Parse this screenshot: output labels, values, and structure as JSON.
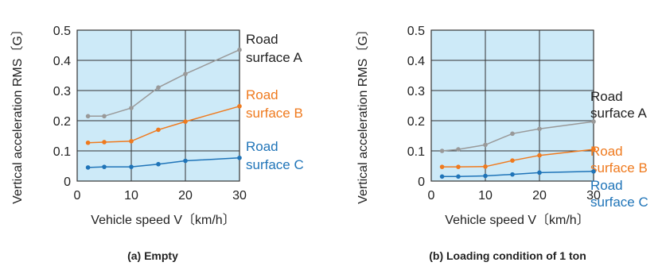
{
  "colors": {
    "plot_background": "#cdeaf8",
    "grid": "#333333",
    "road_a": "#999999",
    "road_b": "#ef7a1e",
    "road_c": "#1f74b8"
  },
  "chart_data": [
    {
      "type": "line",
      "caption": "(a) Empty",
      "xlabel": "Vehicle speed V〔km/h〕",
      "ylabel": "Vertical acceleration RMS〔G〕",
      "xlim": [
        0,
        30
      ],
      "ylim": [
        0,
        0.5
      ],
      "xticks": [
        "0",
        "10",
        "20",
        "30"
      ],
      "yticks": [
        "0",
        "0.1",
        "0.2",
        "0.3",
        "0.4",
        "0.5"
      ],
      "grid": true,
      "series": [
        {
          "name_lines": [
            "Road",
            "surface A"
          ],
          "color": "#999999",
          "x": [
            2,
            5,
            10,
            15,
            20,
            30
          ],
          "y": [
            0.215,
            0.215,
            0.242,
            0.31,
            0.355,
            0.435
          ]
        },
        {
          "name_lines": [
            "Road",
            "surface B"
          ],
          "color": "#ef7a1e",
          "x": [
            2,
            5,
            10,
            15,
            20,
            30
          ],
          "y": [
            0.127,
            0.129,
            0.132,
            0.17,
            0.197,
            0.248
          ]
        },
        {
          "name_lines": [
            "Road",
            "surface C"
          ],
          "color": "#1f74b8",
          "x": [
            2,
            5,
            10,
            15,
            20,
            30
          ],
          "y": [
            0.045,
            0.047,
            0.047,
            0.056,
            0.067,
            0.077
          ]
        }
      ]
    },
    {
      "type": "line",
      "caption": "(b) Loading condition of 1 ton",
      "xlabel": "Vehicle speed V〔km/h〕",
      "ylabel": "Vertical acceleration RMS〔G〕",
      "xlim": [
        0,
        30
      ],
      "ylim": [
        0,
        0.5
      ],
      "xticks": [
        "0",
        "10",
        "20",
        "30"
      ],
      "yticks": [
        "0",
        "0.1",
        "0.2",
        "0.3",
        "0.4",
        "0.5"
      ],
      "grid": true,
      "series": [
        {
          "name_lines": [
            "Road",
            "surface A"
          ],
          "color": "#999999",
          "x": [
            2,
            5,
            10,
            15,
            20,
            30
          ],
          "y": [
            0.1,
            0.105,
            0.12,
            0.157,
            0.173,
            0.197
          ]
        },
        {
          "name_lines": [
            "Road",
            "surface B"
          ],
          "color": "#ef7a1e",
          "x": [
            2,
            5,
            10,
            15,
            20,
            30
          ],
          "y": [
            0.047,
            0.047,
            0.048,
            0.068,
            0.085,
            0.105
          ]
        },
        {
          "name_lines": [
            "Road",
            "surface C"
          ],
          "color": "#1f74b8",
          "x": [
            2,
            5,
            10,
            15,
            20,
            30
          ],
          "y": [
            0.015,
            0.015,
            0.017,
            0.022,
            0.028,
            0.032
          ]
        }
      ]
    }
  ]
}
